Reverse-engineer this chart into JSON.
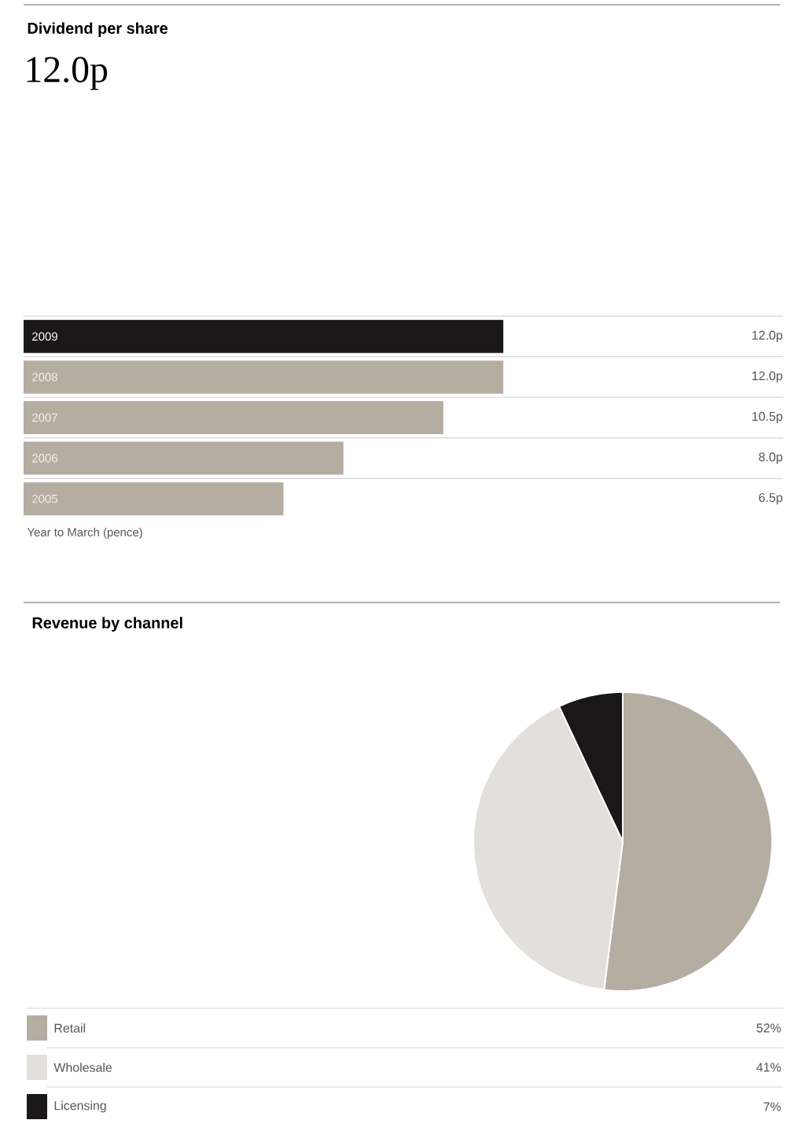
{
  "chart_data": [
    {
      "type": "bar",
      "orientation": "horizontal",
      "title": "Dividend per share",
      "subtitle": "12.0p",
      "categories": [
        "2009",
        "2008",
        "2007",
        "2006",
        "2005"
      ],
      "values": [
        12.0,
        12.0,
        10.5,
        8.0,
        6.5
      ],
      "colors": [
        "#1a1718",
        "#b5ada2",
        "#b5ada2",
        "#b5ada2",
        "#b5ada2"
      ],
      "value_labels": [
        "12.0p",
        "12.0p",
        "10.5p",
        "8.0p",
        "6.5p"
      ],
      "xlim": [
        0,
        19
      ],
      "tick_labels": "y",
      "annotations": [
        "Year to March (pence)"
      ]
    },
    {
      "type": "pie",
      "title": "Revenue by channel",
      "categories": [
        "Retail",
        "Wholesale",
        "Licensing"
      ],
      "values": [
        52,
        41,
        7
      ],
      "colors": [
        "#b5ada2",
        "#e3dfda",
        "#1a1718"
      ],
      "value_labels": [
        "52%",
        "41%",
        "7%"
      ],
      "legend": "bottom"
    }
  ]
}
